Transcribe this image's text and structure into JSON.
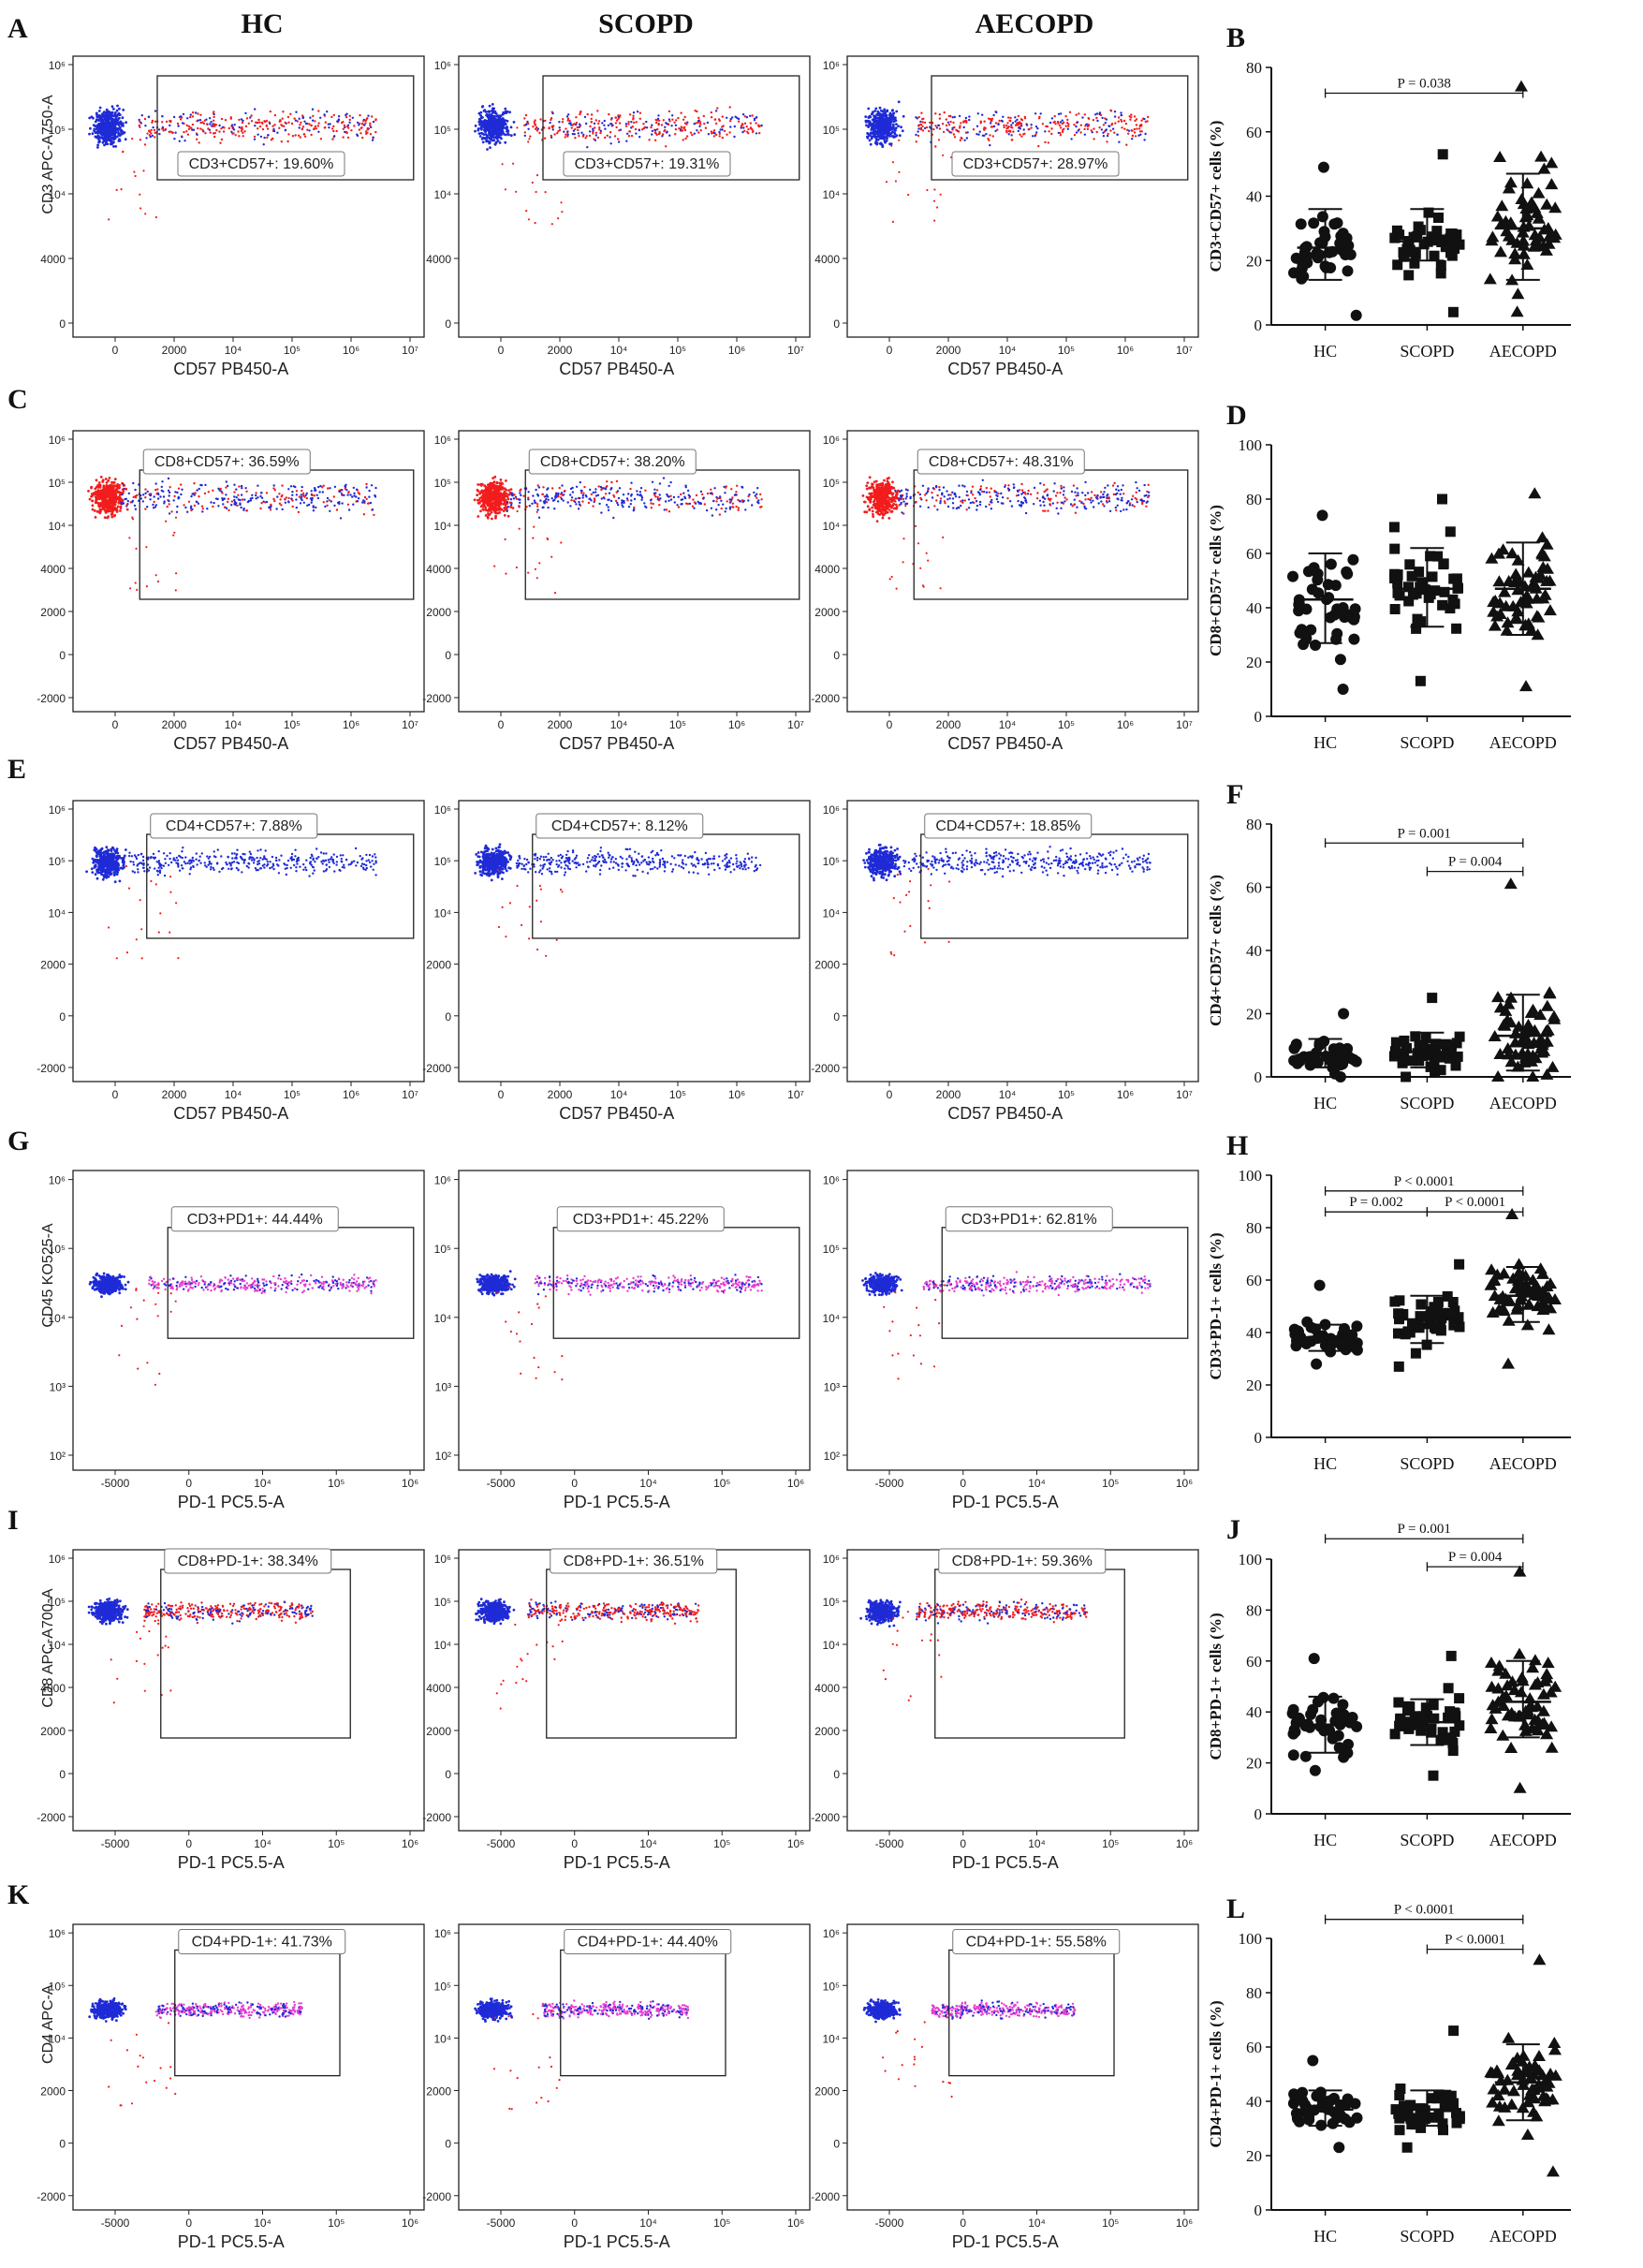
{
  "columns": [
    "HC",
    "SCOPD",
    "AECOPD"
  ],
  "colors": {
    "blue": "#1f2bd6",
    "red": "#f21d1d",
    "magenta": "#e83fd0",
    "green": "#27b13a"
  },
  "flow_rows": [
    {
      "letter": "A",
      "ylabel": "CD3 APC-A750-A",
      "xlabel": "CD57 PB450-A",
      "yticks": [
        "10⁶",
        "10⁵",
        "10⁴",
        "4000",
        "0"
      ],
      "xticks": [
        "0",
        "2000",
        "10⁴",
        "10⁵",
        "10⁶",
        "10⁷"
      ],
      "gates": [
        "CD3+CD57+: 19.60%",
        "CD3+CD57+: 19.31%",
        "CD3+CD57+: 28.97%"
      ]
    },
    {
      "letter": "C",
      "ylabel": "",
      "xlabel": "CD57 PB450-A",
      "yticks": [
        "10⁶",
        "10⁵",
        "10⁴",
        "4000",
        "2000",
        "0",
        "-2000"
      ],
      "xticks": [
        "0",
        "2000",
        "10⁴",
        "10⁵",
        "10⁶",
        "10⁷"
      ],
      "gates": [
        "CD8+CD57+: 36.59%",
        "CD8+CD57+: 38.20%",
        "CD8+CD57+: 48.31%"
      ]
    },
    {
      "letter": "E",
      "ylabel": "",
      "xlabel": "CD57 PB450-A",
      "yticks": [
        "10⁶",
        "10⁵",
        "10⁴",
        "2000",
        "0",
        "-2000"
      ],
      "xticks": [
        "0",
        "2000",
        "10⁴",
        "10⁵",
        "10⁶",
        "10⁷"
      ],
      "gates": [
        "CD4+CD57+: 7.88%",
        "CD4+CD57+: 8.12%",
        "CD4+CD57+: 18.85%"
      ]
    },
    {
      "letter": "G",
      "ylabel": "CD45 KO525-A",
      "xlabel": "PD-1 PC5.5-A",
      "yticks": [
        "10⁶",
        "10⁵",
        "10⁴",
        "10³",
        "10²"
      ],
      "xticks": [
        "-5000",
        "0",
        "10⁴",
        "10⁵",
        "10⁶"
      ],
      "gates": [
        "CD3+PD1+: 44.44%",
        "CD3+PD1+: 45.22%",
        "CD3+PD1+: 62.81%"
      ]
    },
    {
      "letter": "I",
      "ylabel": "CD8 APC-A700-A",
      "xlabel": "PD-1 PC5.5-A",
      "yticks": [
        "10⁶",
        "10⁵",
        "10⁴",
        "4000",
        "2000",
        "0",
        "-2000"
      ],
      "xticks": [
        "-5000",
        "0",
        "10⁴",
        "10⁵",
        "10⁶"
      ],
      "gates": [
        "CD8+PD-1+: 38.34%",
        "CD8+PD-1+: 36.51%",
        "CD8+PD-1+: 59.36%"
      ]
    },
    {
      "letter": "K",
      "ylabel": "CD4 APC-A",
      "xlabel": "PD-1 PC5.5-A",
      "yticks": [
        "10⁶",
        "10⁵",
        "10⁴",
        "2000",
        "0",
        "-2000"
      ],
      "xticks": [
        "-5000",
        "0",
        "10⁴",
        "10⁵",
        "10⁶"
      ],
      "gates": [
        "CD4+PD-1+: 41.73%",
        "CD4+PD-1+: 44.40%",
        "CD4+PD-1+: 55.58%"
      ]
    }
  ],
  "chart_data": [
    {
      "letter": "B",
      "type": "scatter",
      "categories": [
        "HC",
        "SCOPD",
        "AECOPD"
      ],
      "ylabel": "CD3+CD57+ cells (%)",
      "ylim": [
        0,
        80
      ],
      "yticks": [
        0,
        20,
        40,
        60,
        80
      ],
      "series": [
        {
          "name": "HC",
          "mean": 24,
          "sd_low": 14,
          "sd_high": 36,
          "min": 3,
          "max": 49,
          "n": 42,
          "marker": "circle"
        },
        {
          "name": "SCOPD",
          "mean": 26,
          "sd_low": 20,
          "sd_high": 36,
          "min": 4,
          "max": 53,
          "n": 44,
          "marker": "square"
        },
        {
          "name": "AECOPD",
          "mean": 30,
          "sd_low": 14,
          "sd_high": 47,
          "min": 4,
          "max": 74,
          "n": 62,
          "marker": "triangle"
        }
      ],
      "annotations": [
        {
          "text": "P = 0.038",
          "from": 0,
          "to": 2,
          "y": 72
        }
      ]
    },
    {
      "letter": "D",
      "type": "scatter",
      "categories": [
        "HC",
        "SCOPD",
        "AECOPD"
      ],
      "ylabel": "CD8+CD57+ cells (%)",
      "ylim": [
        0,
        100
      ],
      "yticks": [
        0,
        20,
        40,
        60,
        80,
        100
      ],
      "series": [
        {
          "name": "HC",
          "mean": 43,
          "sd_low": 27,
          "sd_high": 60,
          "min": 10,
          "max": 74,
          "n": 42,
          "marker": "circle"
        },
        {
          "name": "SCOPD",
          "mean": 47,
          "sd_low": 33,
          "sd_high": 62,
          "min": 13,
          "max": 80,
          "n": 44,
          "marker": "square"
        },
        {
          "name": "AECOPD",
          "mean": 47,
          "sd_low": 30,
          "sd_high": 64,
          "min": 11,
          "max": 82,
          "n": 62,
          "marker": "triangle"
        }
      ],
      "annotations": []
    },
    {
      "letter": "F",
      "type": "scatter",
      "categories": [
        "HC",
        "SCOPD",
        "AECOPD"
      ],
      "ylabel": "CD4+CD57+ cells (%)",
      "ylim": [
        0,
        80
      ],
      "yticks": [
        0,
        20,
        40,
        60,
        80
      ],
      "series": [
        {
          "name": "HC",
          "mean": 7,
          "sd_low": 3,
          "sd_high": 12,
          "min": 0,
          "max": 20,
          "n": 42,
          "marker": "circle"
        },
        {
          "name": "SCOPD",
          "mean": 8,
          "sd_low": 3,
          "sd_high": 14,
          "min": 0,
          "max": 25,
          "n": 44,
          "marker": "square"
        },
        {
          "name": "AECOPD",
          "mean": 13,
          "sd_low": 2,
          "sd_high": 26,
          "min": 0,
          "max": 61,
          "n": 62,
          "marker": "triangle"
        }
      ],
      "annotations": [
        {
          "text": "P = 0.001",
          "from": 0,
          "to": 2,
          "y": 74
        },
        {
          "text": "P = 0.004",
          "from": 1,
          "to": 2,
          "y": 65
        }
      ]
    },
    {
      "letter": "H",
      "type": "scatter",
      "categories": [
        "HC",
        "SCOPD",
        "AECOPD"
      ],
      "ylabel": "CD3+PD-1+ cells (%)",
      "ylim": [
        0,
        100
      ],
      "yticks": [
        0,
        20,
        40,
        60,
        80,
        100
      ],
      "series": [
        {
          "name": "HC",
          "mean": 38,
          "sd_low": 33,
          "sd_high": 43,
          "min": 28,
          "max": 58,
          "n": 42,
          "marker": "circle"
        },
        {
          "name": "SCOPD",
          "mean": 45,
          "sd_low": 36,
          "sd_high": 54,
          "min": 27,
          "max": 66,
          "n": 44,
          "marker": "square"
        },
        {
          "name": "AECOPD",
          "mean": 54,
          "sd_low": 44,
          "sd_high": 65,
          "min": 28,
          "max": 85,
          "n": 62,
          "marker": "triangle"
        }
      ],
      "annotations": [
        {
          "text": "P < 0.0001",
          "from": 0,
          "to": 2,
          "y": 94
        },
        {
          "text": "P = 0.002",
          "from": 0,
          "to": 1,
          "y": 86
        },
        {
          "text": "P < 0.0001",
          "from": 1,
          "to": 2,
          "y": 86
        }
      ]
    },
    {
      "letter": "J",
      "type": "scatter",
      "categories": [
        "HC",
        "SCOPD",
        "AECOPD"
      ],
      "ylabel": "CD8+PD-1+ cells (%)",
      "ylim": [
        0,
        100
      ],
      "yticks": [
        0,
        20,
        40,
        60,
        80,
        100
      ],
      "series": [
        {
          "name": "HC",
          "mean": 35,
          "sd_low": 24,
          "sd_high": 46,
          "min": 17,
          "max": 61,
          "n": 42,
          "marker": "circle"
        },
        {
          "name": "SCOPD",
          "mean": 36,
          "sd_low": 27,
          "sd_high": 45,
          "min": 15,
          "max": 62,
          "n": 44,
          "marker": "square"
        },
        {
          "name": "AECOPD",
          "mean": 44,
          "sd_low": 30,
          "sd_high": 60,
          "min": 10,
          "max": 95,
          "n": 62,
          "marker": "triangle"
        }
      ],
      "annotations": [
        {
          "text": "P = 0.001",
          "from": 0,
          "to": 2,
          "y": 108
        },
        {
          "text": "P = 0.004",
          "from": 1,
          "to": 2,
          "y": 97
        }
      ]
    },
    {
      "letter": "L",
      "type": "scatter",
      "categories": [
        "HC",
        "SCOPD",
        "AECOPD"
      ],
      "ylabel": "CD4+PD-1+ cells (%)",
      "ylim": [
        0,
        100
      ],
      "yticks": [
        0,
        20,
        40,
        60,
        80,
        100
      ],
      "series": [
        {
          "name": "HC",
          "mean": 37,
          "sd_low": 31,
          "sd_high": 44,
          "min": 23,
          "max": 55,
          "n": 42,
          "marker": "circle"
        },
        {
          "name": "SCOPD",
          "mean": 37,
          "sd_low": 31,
          "sd_high": 44,
          "min": 23,
          "max": 66,
          "n": 44,
          "marker": "square"
        },
        {
          "name": "AECOPD",
          "mean": 47,
          "sd_low": 33,
          "sd_high": 61,
          "min": 14,
          "max": 92,
          "n": 62,
          "marker": "triangle"
        }
      ],
      "annotations": [
        {
          "text": "P < 0.0001",
          "from": 0,
          "to": 2,
          "y": 107
        },
        {
          "text": "P < 0.0001",
          "from": 1,
          "to": 2,
          "y": 96
        }
      ]
    }
  ]
}
